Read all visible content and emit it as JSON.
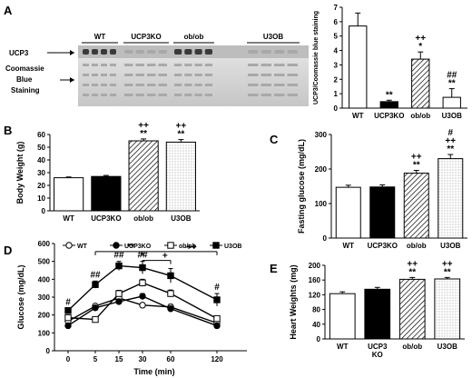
{
  "panels": {
    "A": {
      "letter": "A",
      "blot": {
        "lane_groups": [
          "WT",
          "UCP3KO",
          "ob/ob",
          "U3OB"
        ],
        "rows": [
          "UCP3",
          "Coomassie",
          "Blue",
          "Staining"
        ]
      }
    },
    "B": {
      "letter": "B"
    },
    "C": {
      "letter": "C"
    },
    "D": {
      "letter": "D"
    },
    "E": {
      "letter": "E"
    }
  },
  "chart_data": [
    {
      "id": "A",
      "type": "bar",
      "categories": [
        "WT",
        "UCP3KO",
        "ob/ob",
        "U3OB"
      ],
      "values": [
        5.7,
        0.45,
        3.4,
        0.75
      ],
      "errors": [
        0.9,
        0.1,
        0.5,
        0.6
      ],
      "fills": [
        "white",
        "black",
        "hatch",
        "white"
      ],
      "annotations": [
        [],
        [
          "**"
        ],
        [
          "++",
          "*"
        ],
        [
          "##",
          "**"
        ]
      ],
      "ylabel": "UCP3/Coomassie blue staining",
      "ylim": [
        0,
        7
      ],
      "yticks": [
        "0",
        "1",
        "2",
        "3",
        "4",
        "5",
        "6",
        "7"
      ]
    },
    {
      "id": "B",
      "type": "bar",
      "categories": [
        "WT",
        "UCP3KO",
        "ob/ob",
        "U3OB"
      ],
      "values": [
        26,
        27,
        55,
        54
      ],
      "errors": [
        0.6,
        0.8,
        1.5,
        2.0
      ],
      "fills": [
        "white",
        "black",
        "hatch",
        "dots"
      ],
      "annotations": [
        [],
        [],
        [
          "++",
          "**"
        ],
        [
          "++",
          "**"
        ]
      ],
      "ylabel": "Body Weight (g)",
      "ylim": [
        0,
        60
      ],
      "yticks": [
        "0",
        "10",
        "20",
        "30",
        "40",
        "50",
        "60"
      ]
    },
    {
      "id": "C",
      "type": "bar",
      "categories": [
        "WT",
        "UCP3KO",
        "ob/ob",
        "U3OB"
      ],
      "values": [
        147,
        148,
        188,
        230
      ],
      "errors": [
        6,
        6,
        8,
        12
      ],
      "fills": [
        "white",
        "black",
        "hatch",
        "dots"
      ],
      "annotations": [
        [],
        [],
        [
          "++",
          "**"
        ],
        [
          "#",
          "++",
          "**"
        ]
      ],
      "ylabel": "Fasting glucose (mg/dL)",
      "ylim": [
        0,
        300
      ],
      "yticks": [
        "0",
        "100",
        "200",
        "300"
      ]
    },
    {
      "id": "D",
      "type": "line",
      "x": [
        0,
        5,
        15,
        30,
        60,
        120
      ],
      "x_ticks": [
        "0",
        "5",
        "15",
        "30",
        "60",
        "120"
      ],
      "series": [
        {
          "name": "WT",
          "marker": "circle-open",
          "values": [
            165,
            250,
            295,
            255,
            245,
            155
          ],
          "errors": [
            8,
            12,
            12,
            12,
            15,
            10
          ]
        },
        {
          "name": "UCP3KO",
          "marker": "circle-filled",
          "values": [
            140,
            240,
            275,
            305,
            235,
            140
          ],
          "errors": [
            8,
            12,
            12,
            15,
            15,
            10
          ]
        },
        {
          "name": "ob/ob",
          "marker": "square-open",
          "values": [
            185,
            175,
            320,
            380,
            320,
            180
          ],
          "errors": [
            10,
            12,
            18,
            20,
            20,
            15
          ]
        },
        {
          "name": "U3OB",
          "marker": "square-filled",
          "values": [
            225,
            370,
            475,
            465,
            420,
            285
          ],
          "errors": [
            12,
            20,
            25,
            35,
            40,
            35
          ]
        }
      ],
      "point_annotations": [
        {
          "x_index": 0,
          "text": "#"
        },
        {
          "x_index": 1,
          "text": "##"
        },
        {
          "x_index": 2,
          "text": "##"
        },
        {
          "x_index": 3,
          "text": "##"
        },
        {
          "x_index": 5,
          "text": "#"
        }
      ],
      "brackets": [
        {
          "from": 1,
          "to": 5,
          "text": "**",
          "text_x": 2.5,
          "level": 555
        },
        {
          "from": 1,
          "to": 5,
          "text": "++",
          "text_x": 4.45,
          "level": 555
        },
        {
          "from": 3,
          "to": 4,
          "text": "*",
          "text_x": 3.0,
          "level": 505
        },
        {
          "from": 3,
          "to": 4,
          "text": "+",
          "text_x": 3.8,
          "level": 505
        }
      ],
      "xlabel": "Time (min)",
      "ylabel": "Glucose (mg/dL)",
      "ylim": [
        0,
        600
      ],
      "yticks": [
        "0",
        "100",
        "200",
        "300",
        "400",
        "500",
        "600"
      ],
      "legend": "top"
    },
    {
      "id": "E",
      "type": "bar",
      "categories": [
        "WT",
        "UCP3\nKO",
        "ob/ob",
        "U3OB"
      ],
      "values": [
        123,
        135,
        162,
        163
      ],
      "errors": [
        5,
        5,
        5,
        4
      ],
      "fills": [
        "white",
        "black",
        "hatch",
        "dots"
      ],
      "annotations": [
        [],
        [],
        [
          "++",
          "**"
        ],
        [
          "++",
          "**"
        ]
      ],
      "ylabel": "Heart Weights (mg)",
      "ylim": [
        0,
        200
      ],
      "yticks": [
        "0",
        "40",
        "80",
        "120",
        "160",
        "200"
      ]
    }
  ]
}
